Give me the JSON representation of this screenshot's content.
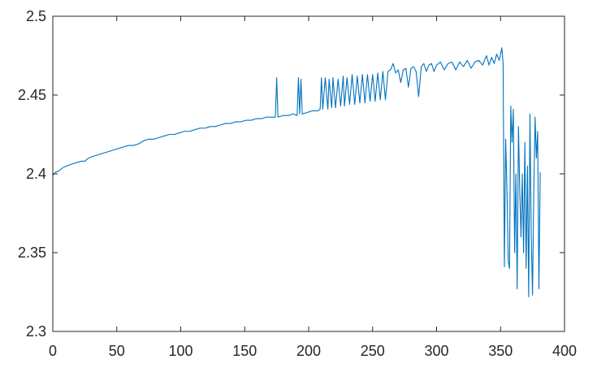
{
  "chart_data": {
    "type": "line",
    "title": "",
    "xlabel": "",
    "ylabel": "",
    "xlim": [
      0,
      400
    ],
    "ylim": [
      2.3,
      2.5
    ],
    "xticks": [
      0,
      50,
      100,
      150,
      200,
      250,
      300,
      350,
      400
    ],
    "yticks": [
      2.3,
      2.35,
      2.4,
      2.45,
      2.5
    ],
    "xtick_labels": [
      "0",
      "50",
      "100",
      "150",
      "200",
      "250",
      "300",
      "350",
      "400"
    ],
    "ytick_labels": [
      "2.3",
      "2.35",
      "2.4",
      "2.45",
      "2.5"
    ],
    "grid": false,
    "series": [
      {
        "color": "#0072BD",
        "points": [
          [
            0,
            2.399
          ],
          [
            2,
            2.401
          ],
          [
            5,
            2.402
          ],
          [
            8,
            2.404
          ],
          [
            11,
            2.405
          ],
          [
            14,
            2.406
          ],
          [
            18,
            2.407
          ],
          [
            22,
            2.408
          ],
          [
            25,
            2.408
          ],
          [
            28,
            2.41
          ],
          [
            31,
            2.411
          ],
          [
            35,
            2.412
          ],
          [
            39,
            2.413
          ],
          [
            43,
            2.414
          ],
          [
            47,
            2.415
          ],
          [
            51,
            2.416
          ],
          [
            55,
            2.417
          ],
          [
            59,
            2.418
          ],
          [
            63,
            2.418
          ],
          [
            67,
            2.419
          ],
          [
            71,
            2.421
          ],
          [
            75,
            2.422
          ],
          [
            79,
            2.422
          ],
          [
            83,
            2.423
          ],
          [
            87,
            2.424
          ],
          [
            91,
            2.425
          ],
          [
            95,
            2.425
          ],
          [
            99,
            2.426
          ],
          [
            103,
            2.427
          ],
          [
            107,
            2.427
          ],
          [
            111,
            2.428
          ],
          [
            115,
            2.429
          ],
          [
            119,
            2.429
          ],
          [
            123,
            2.43
          ],
          [
            127,
            2.43
          ],
          [
            131,
            2.431
          ],
          [
            135,
            2.432
          ],
          [
            139,
            2.432
          ],
          [
            143,
            2.433
          ],
          [
            147,
            2.433
          ],
          [
            151,
            2.434
          ],
          [
            155,
            2.434
          ],
          [
            159,
            2.435
          ],
          [
            163,
            2.435
          ],
          [
            167,
            2.436
          ],
          [
            171,
            2.436
          ],
          [
            174,
            2.436
          ],
          [
            175,
            2.461
          ],
          [
            176,
            2.436
          ],
          [
            180,
            2.437
          ],
          [
            184,
            2.437
          ],
          [
            188,
            2.438
          ],
          [
            191,
            2.437
          ],
          [
            192,
            2.461
          ],
          [
            193,
            2.438
          ],
          [
            194,
            2.46
          ],
          [
            195,
            2.438
          ],
          [
            199,
            2.439
          ],
          [
            203,
            2.44
          ],
          [
            207,
            2.44
          ],
          [
            209,
            2.441
          ],
          [
            210,
            2.461
          ],
          [
            211,
            2.441
          ],
          [
            213,
            2.461
          ],
          [
            215,
            2.441
          ],
          [
            216,
            2.46
          ],
          [
            218,
            2.442
          ],
          [
            219,
            2.461
          ],
          [
            221,
            2.442
          ],
          [
            223,
            2.46
          ],
          [
            225,
            2.443
          ],
          [
            227,
            2.462
          ],
          [
            228,
            2.443
          ],
          [
            230,
            2.461
          ],
          [
            232,
            2.444
          ],
          [
            234,
            2.463
          ],
          [
            236,
            2.444
          ],
          [
            238,
            2.462
          ],
          [
            240,
            2.445
          ],
          [
            242,
            2.463
          ],
          [
            244,
            2.445
          ],
          [
            246,
            2.463
          ],
          [
            248,
            2.446
          ],
          [
            250,
            2.463
          ],
          [
            252,
            2.446
          ],
          [
            254,
            2.464
          ],
          [
            256,
            2.447
          ],
          [
            258,
            2.465
          ],
          [
            260,
            2.447
          ],
          [
            262,
            2.465
          ],
          [
            264,
            2.466
          ],
          [
            266,
            2.47
          ],
          [
            268,
            2.464
          ],
          [
            270,
            2.466
          ],
          [
            272,
            2.458
          ],
          [
            274,
            2.466
          ],
          [
            276,
            2.467
          ],
          [
            278,
            2.455
          ],
          [
            280,
            2.467
          ],
          [
            282,
            2.468
          ],
          [
            284,
            2.465
          ],
          [
            286,
            2.449
          ],
          [
            288,
            2.468
          ],
          [
            290,
            2.47
          ],
          [
            292,
            2.465
          ],
          [
            294,
            2.469
          ],
          [
            296,
            2.47
          ],
          [
            298,
            2.465
          ],
          [
            300,
            2.469
          ],
          [
            303,
            2.471
          ],
          [
            306,
            2.466
          ],
          [
            309,
            2.47
          ],
          [
            312,
            2.471
          ],
          [
            315,
            2.466
          ],
          [
            318,
            2.471
          ],
          [
            321,
            2.468
          ],
          [
            324,
            2.472
          ],
          [
            327,
            2.467
          ],
          [
            330,
            2.471
          ],
          [
            333,
            2.472
          ],
          [
            336,
            2.469
          ],
          [
            339,
            2.475
          ],
          [
            341,
            2.469
          ],
          [
            343,
            2.474
          ],
          [
            345,
            2.47
          ],
          [
            347,
            2.476
          ],
          [
            349,
            2.472
          ],
          [
            351,
            2.48
          ],
          [
            352,
            2.47
          ],
          [
            353,
            2.341
          ],
          [
            354,
            2.422
          ],
          [
            355,
            2.39
          ],
          [
            356,
            2.345
          ],
          [
            357,
            2.34
          ],
          [
            358,
            2.443
          ],
          [
            359,
            2.42
          ],
          [
            360,
            2.441
          ],
          [
            361,
            2.35
          ],
          [
            362,
            2.4
          ],
          [
            363,
            2.327
          ],
          [
            364,
            2.43
          ],
          [
            365,
            2.39
          ],
          [
            366,
            2.36
          ],
          [
            367,
            2.4
          ],
          [
            368,
            2.35
          ],
          [
            369,
            2.42
          ],
          [
            370,
            2.34
          ],
          [
            371,
            2.405
          ],
          [
            372,
            2.322
          ],
          [
            373,
            2.438
          ],
          [
            374,
            2.36
          ],
          [
            375,
            2.323
          ],
          [
            376,
            2.39
          ],
          [
            377,
            2.436
          ],
          [
            378,
            2.41
          ],
          [
            379,
            2.427
          ],
          [
            380,
            2.327
          ],
          [
            381,
            2.401
          ]
        ]
      }
    ]
  }
}
